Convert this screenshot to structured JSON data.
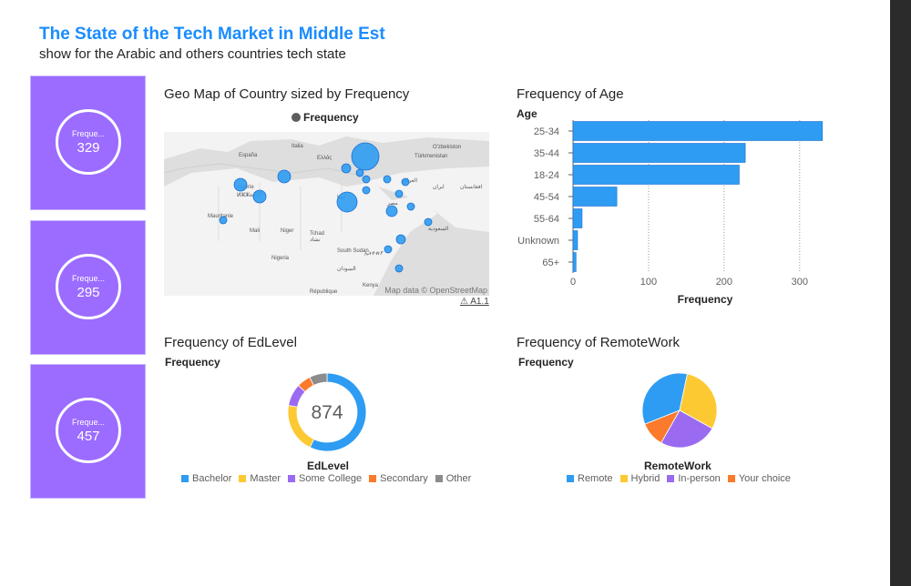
{
  "header": {
    "title": "The State of the Tech Market in Middle Est",
    "subtitle": "show for the Arabic and others countries tech state"
  },
  "cards": [
    {
      "label": "Freque...",
      "value": "329"
    },
    {
      "label": "Freque...",
      "value": "295"
    },
    {
      "label": "Freque...",
      "value": "457"
    }
  ],
  "colors": {
    "card_bg": "#9b6cff",
    "blue": "#2e9cf2",
    "yellow": "#fdc932",
    "purple": "#9a6bf0",
    "orange": "#fb7a2b",
    "gray": "#8c8c8c"
  },
  "map": {
    "title": "Geo Map of Country sized by Frequency",
    "legend": "Frequency",
    "attribution": "Map data © OpenStreetMap",
    "version": "A1.1",
    "labels": [
      "España",
      "Italia",
      "Ελλάς",
      "Türkmenistan",
      "O'zbekiston",
      "Algérie",
      "ⵍⵣⵣⴰⵢⵔ",
      "Mauritanie",
      "Mali",
      "Niger",
      "Tchad",
      "تشاد",
      "Nigeria",
      "South Sudan",
      "ኢትዮጵያ",
      "السودان",
      "Kenya",
      "République",
      "ليبيا",
      "مصر",
      "العراق",
      "ایران",
      "السعودية",
      "افغانستان"
    ]
  },
  "chart_data": [
    {
      "type": "bar",
      "orientation": "horizontal",
      "title": "Frequency of Age",
      "ylabel": "Age",
      "xlabel": "Frequency",
      "categories": [
        "25-34",
        "35-44",
        "18-24",
        "45-54",
        "55-64",
        "Unknown",
        "65+"
      ],
      "values": [
        330,
        228,
        220,
        58,
        12,
        6,
        4
      ],
      "xticks": [
        0,
        100,
        200,
        300
      ],
      "xlim": [
        0,
        340
      ]
    },
    {
      "type": "pie",
      "variant": "donut",
      "title": "Frequency of EdLevel",
      "measure": "Frequency",
      "center_label": "874",
      "legend_title": "EdLevel",
      "categories": [
        "Bachelor",
        "Master",
        "Some College",
        "Secondary",
        "Other"
      ],
      "values": [
        500,
        180,
        80,
        50,
        64
      ]
    },
    {
      "type": "pie",
      "title": "Frequency of RemoteWork",
      "measure": "Frequency",
      "legend_title": "RemoteWork",
      "categories": [
        "Remote",
        "Hybrid",
        "In-person",
        "Your choice"
      ],
      "values": [
        300,
        260,
        220,
        94
      ]
    }
  ]
}
